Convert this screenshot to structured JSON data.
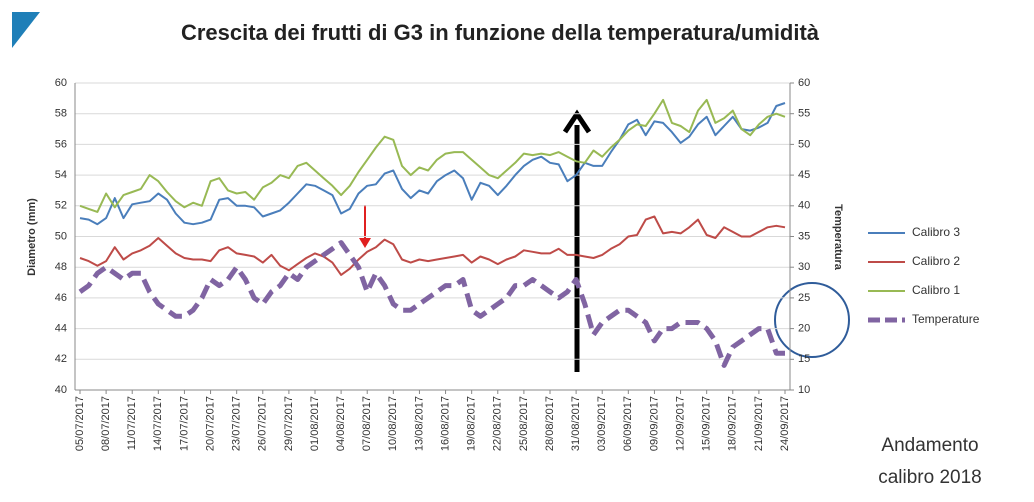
{
  "chart_data": {
    "type": "line",
    "title": "Crescita dei frutti di G3 in funzione della temperatura/umidità",
    "ylabel": "Diametro (mm)",
    "y2label": "Temperatura",
    "annotation": [
      "Andamento",
      "calibro 2018"
    ],
    "categories": [
      "05/07/2017",
      null,
      null,
      "08/07/2017",
      null,
      null,
      "11/07/2017",
      null,
      null,
      "14/07/2017",
      null,
      null,
      "17/07/2017",
      null,
      null,
      "20/07/2017",
      null,
      null,
      "23/07/2017",
      null,
      null,
      "26/07/2017",
      null,
      null,
      "29/07/2017",
      null,
      null,
      "01/08/2017",
      null,
      null,
      "04/08/2017",
      null,
      null,
      "07/08/2017",
      null,
      null,
      "10/08/2017",
      null,
      null,
      "13/08/2017",
      null,
      null,
      "16/08/2017",
      null,
      null,
      "19/08/2017",
      null,
      null,
      "22/08/2017",
      null,
      null,
      "25/08/2017",
      null,
      null,
      "28/08/2017",
      null,
      null,
      "31/08/2017",
      null,
      null,
      "03/09/2017",
      null,
      null,
      "06/09/2017",
      null,
      null,
      "09/09/2017",
      null,
      null,
      "12/09/2017",
      null,
      null,
      "15/09/2017",
      null,
      null,
      "18/09/2017",
      null,
      null,
      "21/09/2017",
      null,
      null,
      "24/09/2017"
    ],
    "series": [
      {
        "name": "Calibro 3",
        "color": "#4a7ebb",
        "values": [
          51.2,
          51.1,
          50.8,
          51.2,
          52.5,
          51.2,
          52.1,
          52.2,
          52.3,
          52.8,
          52.4,
          51.5,
          50.9,
          50.8,
          50.9,
          51.1,
          52.4,
          52.5,
          52.0,
          52.0,
          51.9,
          51.3,
          51.5,
          51.7,
          52.2,
          52.8,
          53.4,
          53.3,
          53.0,
          52.7,
          51.5,
          51.8,
          52.8,
          53.3,
          53.4,
          54.1,
          54.3,
          53.1,
          52.5,
          53.0,
          52.8,
          53.6,
          54.0,
          54.3,
          53.8,
          52.4,
          53.5,
          53.3,
          52.7,
          53.3,
          54.0,
          54.6,
          55.0,
          55.2,
          54.8,
          54.7,
          53.6,
          54.0,
          54.8,
          54.6,
          54.6,
          55.5,
          56.3,
          57.3,
          57.6,
          56.6,
          57.5,
          57.4,
          56.8,
          56.1,
          56.5,
          57.3,
          57.8,
          56.6,
          57.2,
          57.8,
          57.0,
          56.9,
          57.1,
          57.4,
          58.5,
          58.7
        ]
      },
      {
        "name": "Calibro 2",
        "color": "#be4b48",
        "values": [
          48.6,
          48.4,
          48.1,
          48.4,
          49.3,
          48.5,
          48.9,
          49.1,
          49.4,
          49.9,
          49.4,
          48.9,
          48.6,
          48.5,
          48.5,
          48.4,
          49.1,
          49.3,
          48.9,
          48.8,
          48.7,
          48.3,
          48.8,
          48.1,
          47.8,
          48.2,
          48.6,
          48.9,
          48.7,
          48.3,
          47.5,
          47.9,
          48.5,
          49.0,
          49.3,
          49.8,
          49.5,
          48.5,
          48.3,
          48.5,
          48.4,
          48.5,
          48.6,
          48.7,
          48.8,
          48.3,
          48.7,
          48.5,
          48.2,
          48.5,
          48.7,
          49.1,
          49.0,
          48.9,
          48.9,
          49.2,
          48.8,
          48.8,
          48.7,
          48.6,
          48.8,
          49.2,
          49.5,
          50.0,
          50.1,
          51.1,
          51.3,
          50.2,
          50.3,
          50.2,
          50.6,
          51.1,
          50.1,
          49.9,
          50.6,
          50.3,
          50.0,
          50.0,
          50.3,
          50.6,
          50.7,
          50.6
        ]
      },
      {
        "name": "Calibro 1",
        "color": "#98b954",
        "values": [
          52.0,
          51.8,
          51.6,
          52.8,
          51.9,
          52.7,
          52.9,
          53.1,
          54.0,
          53.6,
          52.9,
          52.3,
          51.9,
          52.2,
          52.0,
          53.6,
          53.8,
          53.0,
          52.8,
          52.9,
          52.4,
          53.2,
          53.5,
          54.0,
          53.8,
          54.6,
          54.8,
          54.3,
          53.8,
          53.3,
          52.7,
          53.3,
          54.2,
          55.0,
          55.8,
          56.5,
          56.3,
          54.6,
          54.0,
          54.5,
          54.3,
          55.0,
          55.4,
          55.5,
          55.5,
          55.0,
          54.5,
          54.0,
          53.8,
          54.3,
          54.8,
          55.4,
          55.3,
          55.4,
          55.3,
          55.5,
          55.2,
          54.9,
          54.8,
          55.6,
          55.2,
          55.8,
          56.3,
          56.9,
          57.3,
          57.2,
          58.0,
          58.9,
          57.4,
          57.2,
          56.8,
          58.2,
          58.9,
          57.4,
          57.7,
          58.2,
          57.0,
          56.6,
          57.3,
          57.8,
          58.0,
          57.8
        ]
      },
      {
        "name": "Temperature",
        "color": "#8064a2",
        "axis": "y2",
        "line_style": "dashed",
        "values": [
          26,
          27,
          29,
          30,
          29,
          28,
          29,
          29,
          26,
          24,
          23,
          22,
          22,
          23,
          25,
          28,
          27,
          28,
          30,
          28,
          25,
          24,
          26,
          27,
          29,
          28,
          30,
          31,
          32,
          33,
          34,
          32,
          30,
          26,
          29,
          27,
          24,
          23,
          23,
          24,
          25,
          26,
          27,
          27,
          28,
          23,
          22,
          23,
          24,
          25,
          27,
          27,
          28,
          27,
          26,
          25,
          26,
          28,
          24,
          19,
          21,
          22,
          23,
          23,
          22,
          21,
          18,
          20,
          20,
          21,
          21,
          21,
          20,
          18,
          14,
          17,
          18,
          19,
          20,
          20,
          16,
          16
        ]
      }
    ],
    "ylim": [
      40,
      60
    ],
    "yticks": [
      40,
      42,
      44,
      46,
      48,
      50,
      52,
      54,
      56,
      58,
      60
    ],
    "y2lim": [
      10,
      60
    ],
    "y2ticks": [
      10,
      15,
      20,
      25,
      30,
      35,
      40,
      45,
      50,
      55,
      60
    ],
    "grid": true,
    "legend": "right"
  }
}
